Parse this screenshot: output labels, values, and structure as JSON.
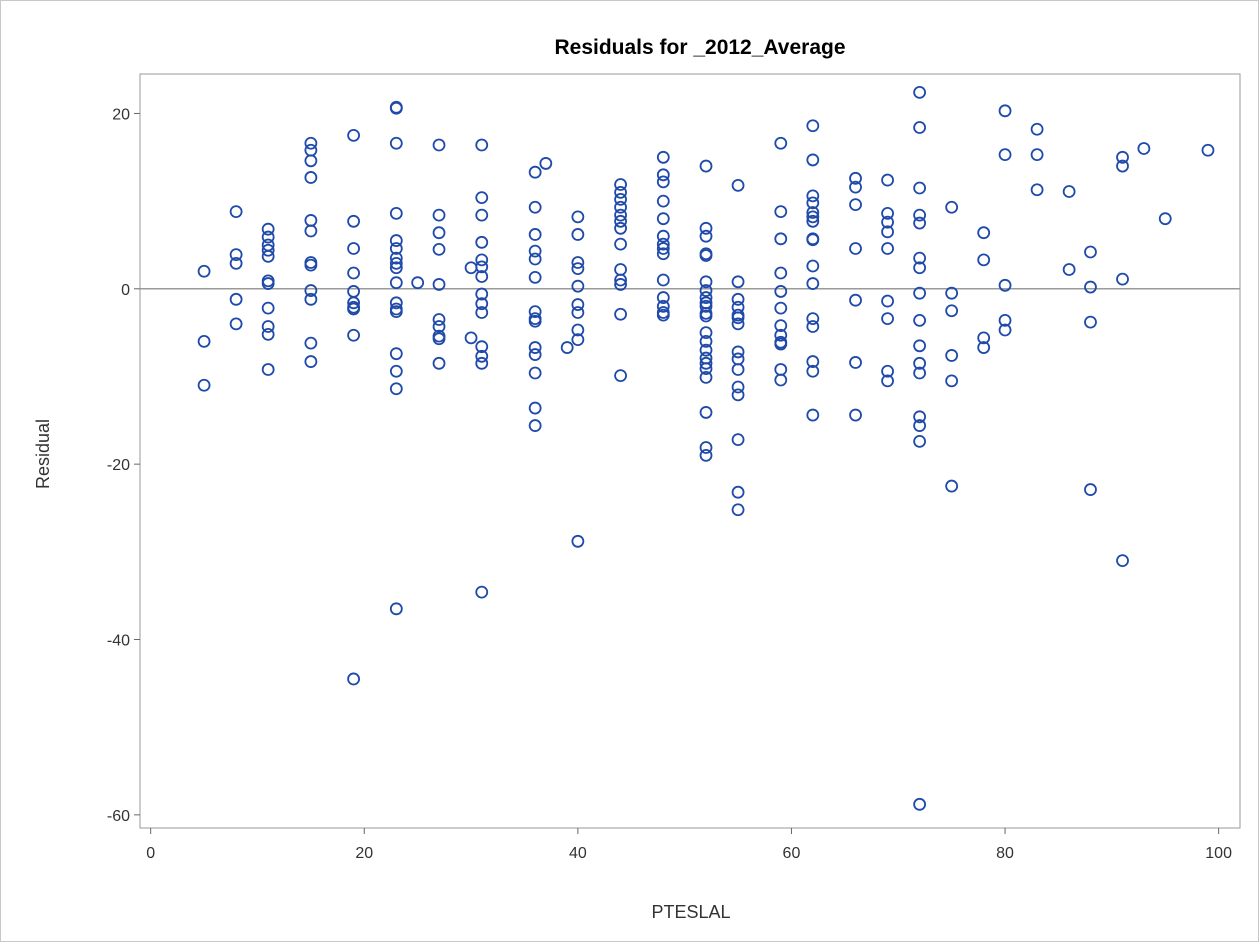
{
  "chart_data": {
    "type": "scatter",
    "title": "Residuals for _2012_Average",
    "xlabel": "PTESLAL",
    "ylabel": "Residual",
    "xlim": [
      -1,
      102
    ],
    "ylim": [
      -61.5,
      24.5
    ],
    "xticks": [
      0,
      20,
      40,
      60,
      80,
      100
    ],
    "yticks": [
      -60,
      -40,
      -20,
      0,
      20
    ],
    "reference_line_y": 0,
    "grid": false,
    "marker": "open-circle",
    "marker_color": "#1F4AAA",
    "refline_color": "#9a9a9a",
    "points": [
      [
        5,
        2
      ],
      [
        5,
        -6
      ],
      [
        5,
        -11
      ],
      [
        8,
        8.8
      ],
      [
        8,
        3.9
      ],
      [
        8,
        2.9
      ],
      [
        8,
        -1.2
      ],
      [
        8,
        -4
      ],
      [
        11,
        6.8
      ],
      [
        11,
        5.9
      ],
      [
        11,
        5
      ],
      [
        11,
        4.4
      ],
      [
        11,
        3.7
      ],
      [
        11,
        0.9
      ],
      [
        11,
        0.6
      ],
      [
        11,
        -2.2
      ],
      [
        11,
        -4.3
      ],
      [
        11,
        -5.2
      ],
      [
        11,
        -9.2
      ],
      [
        15,
        16.6
      ],
      [
        15,
        15.8
      ],
      [
        15,
        14.6
      ],
      [
        15,
        12.7
      ],
      [
        15,
        7.8
      ],
      [
        15,
        6.6
      ],
      [
        15,
        3
      ],
      [
        15,
        2.7
      ],
      [
        15,
        -0.2
      ],
      [
        15,
        -1.2
      ],
      [
        15,
        -6.2
      ],
      [
        15,
        -8.3
      ],
      [
        19,
        17.5
      ],
      [
        19,
        7.7
      ],
      [
        19,
        4.6
      ],
      [
        19,
        1.8
      ],
      [
        19,
        -0.3
      ],
      [
        19,
        -1.6
      ],
      [
        19,
        -2.1
      ],
      [
        19,
        -2.3
      ],
      [
        19,
        -5.3
      ],
      [
        19,
        -44.5
      ],
      [
        23,
        20.7
      ],
      [
        23,
        20.6
      ],
      [
        23,
        16.6
      ],
      [
        23,
        8.6
      ],
      [
        23,
        5.5
      ],
      [
        23,
        4.6
      ],
      [
        23,
        3.5
      ],
      [
        23,
        2.9
      ],
      [
        23,
        2.4
      ],
      [
        23,
        0.7
      ],
      [
        23,
        -1.6
      ],
      [
        23,
        -2.3
      ],
      [
        23,
        -2.6
      ],
      [
        23,
        -7.4
      ],
      [
        23,
        -9.4
      ],
      [
        23,
        -11.4
      ],
      [
        23,
        -36.5
      ],
      [
        25,
        0.7
      ],
      [
        27,
        16.4
      ],
      [
        27,
        8.4
      ],
      [
        27,
        6.4
      ],
      [
        27,
        4.5
      ],
      [
        27,
        0.5
      ],
      [
        27,
        -3.5
      ],
      [
        27,
        -4.3
      ],
      [
        27,
        -5.4
      ],
      [
        27,
        -5.7
      ],
      [
        27,
        -8.5
      ],
      [
        30,
        2.4
      ],
      [
        30,
        -5.6
      ],
      [
        31,
        16.4
      ],
      [
        31,
        10.4
      ],
      [
        31,
        8.4
      ],
      [
        31,
        5.3
      ],
      [
        31,
        3.3
      ],
      [
        31,
        2.5
      ],
      [
        31,
        1.4
      ],
      [
        31,
        -0.6
      ],
      [
        31,
        -1.7
      ],
      [
        31,
        -2.7
      ],
      [
        31,
        -6.6
      ],
      [
        31,
        -7.7
      ],
      [
        31,
        -8.5
      ],
      [
        31,
        -34.6
      ],
      [
        36,
        13.3
      ],
      [
        36,
        9.3
      ],
      [
        36,
        6.2
      ],
      [
        36,
        4.3
      ],
      [
        36,
        3.4
      ],
      [
        36,
        1.3
      ],
      [
        36,
        -2.6
      ],
      [
        36,
        -3.4
      ],
      [
        36,
        -3.7
      ],
      [
        36,
        -6.7
      ],
      [
        36,
        -7.5
      ],
      [
        36,
        -9.6
      ],
      [
        36,
        -13.6
      ],
      [
        36,
        -15.6
      ],
      [
        37,
        14.3
      ],
      [
        39,
        -6.7
      ],
      [
        40,
        8.2
      ],
      [
        40,
        6.2
      ],
      [
        40,
        3
      ],
      [
        40,
        2.3
      ],
      [
        40,
        0.3
      ],
      [
        40,
        -1.8
      ],
      [
        40,
        -2.7
      ],
      [
        40,
        -4.7
      ],
      [
        40,
        -5.8
      ],
      [
        40,
        -28.8
      ],
      [
        44,
        11.9
      ],
      [
        44,
        11
      ],
      [
        44,
        10.2
      ],
      [
        44,
        9.3
      ],
      [
        44,
        8.4
      ],
      [
        44,
        7.7
      ],
      [
        44,
        6.9
      ],
      [
        44,
        5.1
      ],
      [
        44,
        2.2
      ],
      [
        44,
        1
      ],
      [
        44,
        0.5
      ],
      [
        44,
        -2.9
      ],
      [
        44,
        -9.9
      ],
      [
        48,
        15
      ],
      [
        48,
        13
      ],
      [
        48,
        12.2
      ],
      [
        48,
        10
      ],
      [
        48,
        8
      ],
      [
        48,
        6
      ],
      [
        48,
        5.1
      ],
      [
        48,
        4.6
      ],
      [
        48,
        4
      ],
      [
        48,
        1
      ],
      [
        48,
        -1
      ],
      [
        48,
        -2
      ],
      [
        48,
        -2.7
      ],
      [
        48,
        -3
      ],
      [
        52,
        14
      ],
      [
        52,
        6.9
      ],
      [
        52,
        6
      ],
      [
        52,
        4
      ],
      [
        52,
        3.8
      ],
      [
        52,
        0.8
      ],
      [
        52,
        -0.2
      ],
      [
        52,
        -1
      ],
      [
        52,
        -1.6
      ],
      [
        52,
        -2
      ],
      [
        52,
        -2.8
      ],
      [
        52,
        -3.1
      ],
      [
        52,
        -5
      ],
      [
        52,
        -6
      ],
      [
        52,
        -7
      ],
      [
        52,
        -7.9
      ],
      [
        52,
        -8.5
      ],
      [
        52,
        -9.1
      ],
      [
        52,
        -10.1
      ],
      [
        52,
        -14.1
      ],
      [
        52,
        -18.1
      ],
      [
        52,
        -19
      ],
      [
        55,
        11.8
      ],
      [
        55,
        0.8
      ],
      [
        55,
        -1.2
      ],
      [
        55,
        -2.1
      ],
      [
        55,
        -3
      ],
      [
        55,
        -3.3
      ],
      [
        55,
        -4
      ],
      [
        55,
        -7.2
      ],
      [
        55,
        -8
      ],
      [
        55,
        -9.2
      ],
      [
        55,
        -11.2
      ],
      [
        55,
        -12.1
      ],
      [
        55,
        -17.2
      ],
      [
        55,
        -23.2
      ],
      [
        55,
        -25.2
      ],
      [
        59,
        16.6
      ],
      [
        59,
        8.8
      ],
      [
        59,
        5.7
      ],
      [
        59,
        1.8
      ],
      [
        59,
        -0.3
      ],
      [
        59,
        -2.2
      ],
      [
        59,
        -4.2
      ],
      [
        59,
        -5.3
      ],
      [
        59,
        -6.1
      ],
      [
        59,
        -6.3
      ],
      [
        59,
        -9.2
      ],
      [
        59,
        -10.4
      ],
      [
        62,
        18.6
      ],
      [
        62,
        14.7
      ],
      [
        62,
        10.6
      ],
      [
        62,
        9.8
      ],
      [
        62,
        8.7
      ],
      [
        62,
        8.2
      ],
      [
        62,
        7.7
      ],
      [
        62,
        5.7
      ],
      [
        62,
        5.6
      ],
      [
        62,
        2.6
      ],
      [
        62,
        0.6
      ],
      [
        62,
        -3.4
      ],
      [
        62,
        -4.3
      ],
      [
        62,
        -8.3
      ],
      [
        62,
        -9.4
      ],
      [
        62,
        -14.4
      ],
      [
        66,
        12.6
      ],
      [
        66,
        11.6
      ],
      [
        66,
        9.6
      ],
      [
        66,
        4.6
      ],
      [
        66,
        -1.3
      ],
      [
        66,
        -8.4
      ],
      [
        66,
        -14.4
      ],
      [
        69,
        12.4
      ],
      [
        69,
        8.6
      ],
      [
        69,
        7.6
      ],
      [
        69,
        6.5
      ],
      [
        69,
        4.6
      ],
      [
        69,
        -1.4
      ],
      [
        69,
        -3.4
      ],
      [
        69,
        -9.4
      ],
      [
        69,
        -10.5
      ],
      [
        72,
        22.4
      ],
      [
        72,
        18.4
      ],
      [
        72,
        11.5
      ],
      [
        72,
        8.4
      ],
      [
        72,
        7.5
      ],
      [
        72,
        3.5
      ],
      [
        72,
        2.4
      ],
      [
        72,
        -0.5
      ],
      [
        72,
        -3.6
      ],
      [
        72,
        -6.5
      ],
      [
        72,
        -8.5
      ],
      [
        72,
        -9.6
      ],
      [
        72,
        -14.6
      ],
      [
        72,
        -15.6
      ],
      [
        72,
        -17.4
      ],
      [
        72,
        -58.8
      ],
      [
        75,
        9.3
      ],
      [
        75,
        -0.5
      ],
      [
        75,
        -2.5
      ],
      [
        75,
        -7.6
      ],
      [
        75,
        -10.5
      ],
      [
        75,
        -22.5
      ],
      [
        78,
        6.4
      ],
      [
        78,
        3.3
      ],
      [
        78,
        -5.6
      ],
      [
        78,
        -6.7
      ],
      [
        80,
        20.3
      ],
      [
        80,
        15.3
      ],
      [
        80,
        0.4
      ],
      [
        80,
        -3.6
      ],
      [
        80,
        -4.7
      ],
      [
        83,
        18.2
      ],
      [
        83,
        15.3
      ],
      [
        83,
        11.3
      ],
      [
        86,
        11.1
      ],
      [
        86,
        2.2
      ],
      [
        88,
        4.2
      ],
      [
        88,
        0.2
      ],
      [
        88,
        -3.8
      ],
      [
        88,
        -22.9
      ],
      [
        91,
        15
      ],
      [
        91,
        14
      ],
      [
        91,
        1.1
      ],
      [
        91,
        -31
      ],
      [
        93,
        16
      ],
      [
        95,
        8
      ],
      [
        99,
        15.8
      ]
    ]
  }
}
